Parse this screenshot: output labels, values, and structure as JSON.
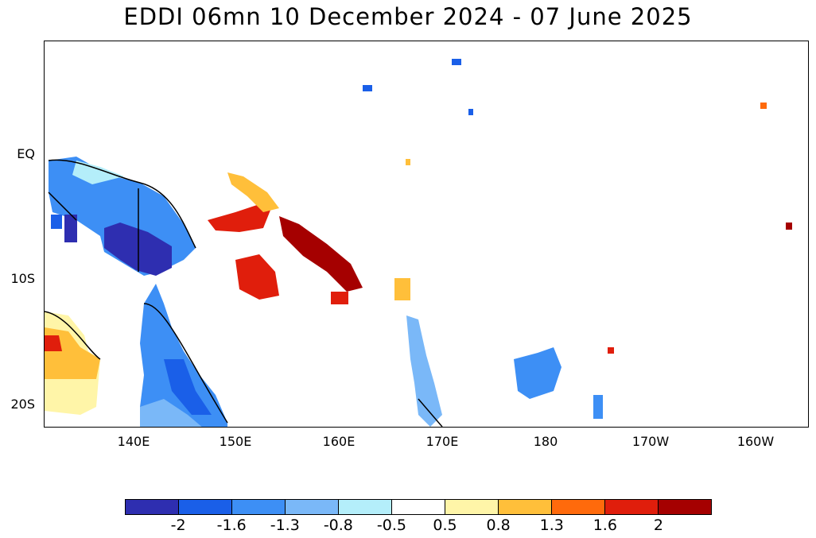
{
  "title": "EDDI 06mn 10 December 2024 - 07 June 2025",
  "axes": {
    "y_ticks": [
      "EQ",
      "10S",
      "20S"
    ],
    "x_ticks": [
      "140E",
      "150E",
      "160E",
      "170E",
      "180",
      "170W",
      "160W"
    ]
  },
  "legend": {
    "colors": [
      "#2e2eb0",
      "#1a5fe8",
      "#3d8ff5",
      "#7ab8f8",
      "#b4eefa",
      "#ffffff",
      "#fff5a8",
      "#ffbf3a",
      "#ff6a0c",
      "#e01e0c",
      "#a50000"
    ],
    "labels": [
      "-2",
      "-1.6",
      "-1.3",
      "-0.8",
      "-0.5",
      "0.5",
      "0.8",
      "1.3",
      "1.6",
      "2"
    ]
  }
}
